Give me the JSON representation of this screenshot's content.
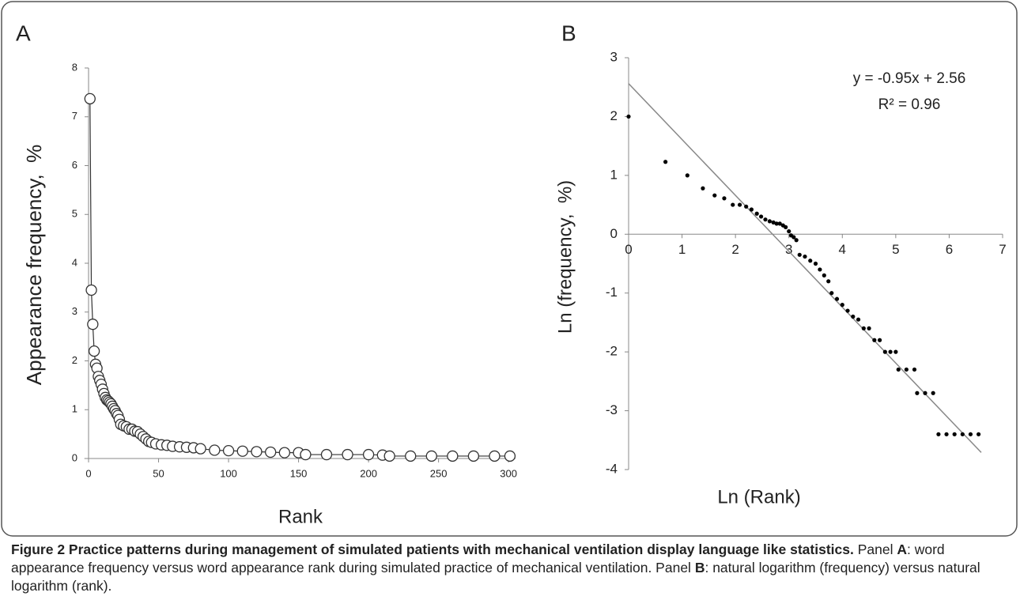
{
  "chart_data": [
    {
      "type": "scatter",
      "panel_label": "A",
      "xlabel": "Rank",
      "ylabel": "Appearance frequency,  %",
      "x": [
        1,
        2,
        3,
        4,
        5,
        6,
        7,
        8,
        9,
        10,
        11,
        12,
        13,
        14,
        15,
        16,
        17,
        18,
        19,
        20,
        21,
        22,
        23,
        25,
        27,
        29,
        31,
        33,
        35,
        37,
        39,
        41,
        43,
        45,
        48,
        52,
        56,
        60,
        65,
        70,
        75,
        80,
        90,
        100,
        110,
        120,
        130,
        140,
        150,
        155,
        170,
        185,
        200,
        210,
        215,
        230,
        245,
        260,
        275,
        290,
        301
      ],
      "values": [
        7.37,
        3.45,
        2.75,
        2.2,
        1.93,
        1.85,
        1.68,
        1.6,
        1.52,
        1.42,
        1.33,
        1.25,
        1.2,
        1.18,
        1.15,
        1.12,
        1.07,
        1.02,
        0.98,
        0.92,
        0.88,
        0.8,
        0.7,
        0.67,
        0.65,
        0.6,
        0.6,
        0.56,
        0.55,
        0.5,
        0.45,
        0.4,
        0.35,
        0.33,
        0.3,
        0.28,
        0.27,
        0.25,
        0.24,
        0.23,
        0.22,
        0.2,
        0.17,
        0.16,
        0.15,
        0.14,
        0.13,
        0.12,
        0.12,
        0.08,
        0.08,
        0.08,
        0.08,
        0.07,
        0.05,
        0.05,
        0.05,
        0.05,
        0.05,
        0.05,
        0.05
      ],
      "xlim": [
        -3,
        305
      ],
      "ylim": [
        0,
        8
      ],
      "xticks": [
        0,
        50,
        100,
        150,
        200,
        250,
        300
      ],
      "yticks": [
        0,
        1,
        2,
        3,
        4,
        5,
        6,
        7,
        8
      ],
      "marker": "open-circle",
      "line": true,
      "color": "#333333"
    },
    {
      "type": "scatter",
      "panel_label": "B",
      "xlabel": "Ln (Rank)",
      "ylabel": "Ln (frequency,  %)",
      "x": [
        0,
        0.69,
        1.1,
        1.39,
        1.61,
        1.79,
        1.95,
        2.08,
        2.2,
        2.3,
        2.4,
        2.48,
        2.56,
        2.64,
        2.71,
        2.77,
        2.83,
        2.89,
        2.94,
        3.0,
        3.04,
        3.09,
        3.14,
        3.2,
        3.3,
        3.4,
        3.5,
        3.58,
        3.66,
        3.74,
        3.8,
        3.9,
        4.0,
        4.1,
        4.2,
        4.3,
        4.4,
        4.5,
        4.6,
        4.7,
        4.8,
        4.9,
        5.0,
        5.05,
        5.2,
        5.35,
        5.4,
        5.55,
        5.7,
        5.8,
        5.95,
        6.1,
        6.25,
        6.4,
        6.55
      ],
      "values": [
        2.0,
        1.23,
        1.0,
        0.78,
        0.66,
        0.61,
        0.5,
        0.5,
        0.47,
        0.42,
        0.35,
        0.3,
        0.25,
        0.22,
        0.2,
        0.18,
        0.18,
        0.15,
        0.12,
        0.05,
        -0.02,
        -0.05,
        -0.1,
        -0.35,
        -0.38,
        -0.45,
        -0.5,
        -0.6,
        -0.7,
        -0.8,
        -1.0,
        -1.1,
        -1.2,
        -1.3,
        -1.4,
        -1.45,
        -1.6,
        -1.6,
        -1.8,
        -1.8,
        -2.0,
        -2.0,
        -2.0,
        -2.3,
        -2.3,
        -2.3,
        -2.7,
        -2.7,
        -2.7,
        -3.4,
        -3.4,
        -3.4,
        -3.4,
        -3.4,
        -3.4
      ],
      "xlim": [
        0,
        7
      ],
      "ylim": [
        -4,
        3
      ],
      "xticks": [
        0,
        1,
        2,
        3,
        4,
        5,
        6,
        7
      ],
      "yticks": [
        -4,
        -3,
        -2,
        -1,
        0,
        1,
        2,
        3
      ],
      "marker": "dot",
      "line": false,
      "color": "#000000",
      "trendline": {
        "x": [
          0,
          6.6
        ],
        "values": [
          2.56,
          -3.71
        ],
        "color": "#888888"
      },
      "annotations": [
        "y = -0.95x + 2.56",
        "R² = 0.96"
      ]
    }
  ],
  "caption": {
    "title": "Figure 2 Practice patterns during management of simulated patients with mechanical ventilation display language like statistics.",
    "body": [
      "Panel",
      "A",
      ": word appearance frequency versus word appearance rank during simulated practice of mechanical ventilation. Panel",
      "B",
      ": natural logarithm (frequency) versus natural logarithm (rank)."
    ]
  }
}
